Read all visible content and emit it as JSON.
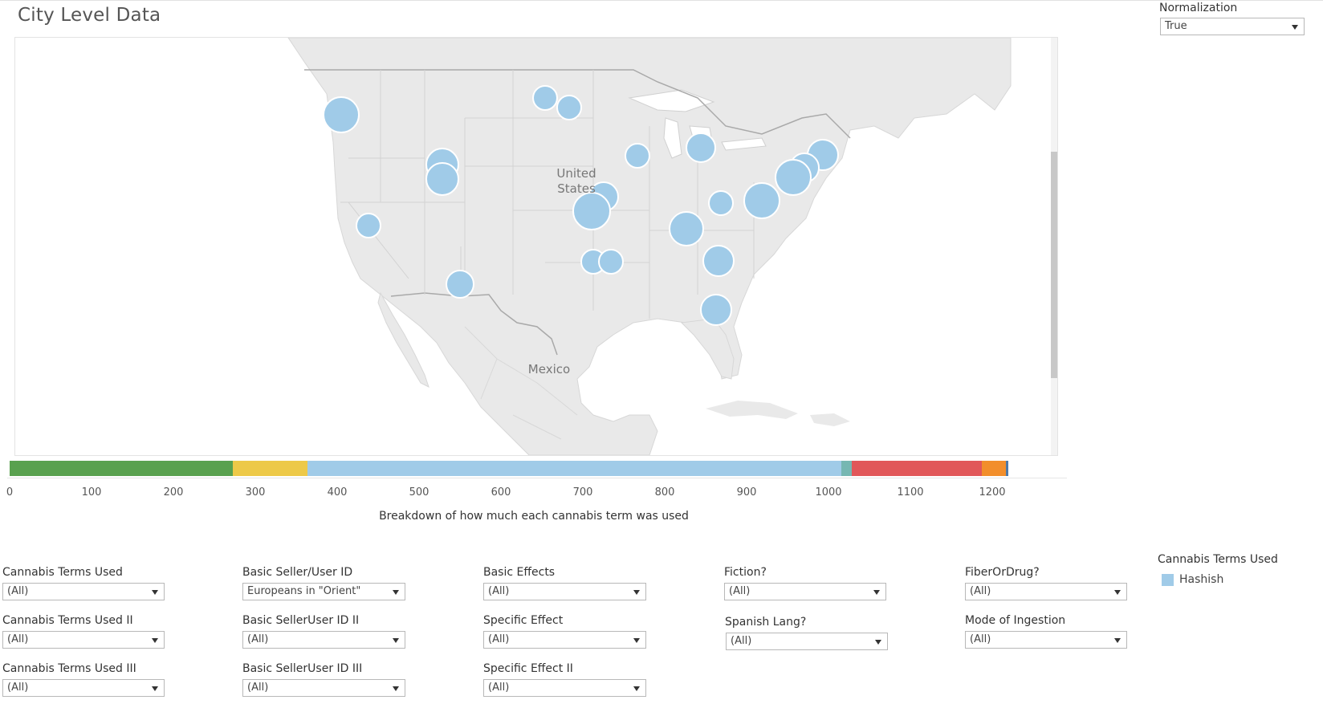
{
  "title": "City Level Data",
  "normalization": {
    "label": "Normalization",
    "value": "True"
  },
  "map": {
    "labels": {
      "us_line1": "United",
      "us_line2": "States",
      "mexico": "Mexico"
    },
    "bubble_color": "#a0cbe8",
    "scroll_up_icon": "chevron-up-icon",
    "scroll_down_icon": "chevron-down-icon"
  },
  "breakdown": {
    "axis_title": "Breakdown of how much each cannabis term was used",
    "ticks": [
      "0",
      "100",
      "200",
      "300",
      "400",
      "500",
      "600",
      "700",
      "800",
      "900",
      "1000",
      "1100",
      "1200"
    ],
    "segments": [
      {
        "start": 0,
        "end": 273,
        "color": "#59a14f"
      },
      {
        "start": 273,
        "end": 364,
        "color": "#edc948"
      },
      {
        "start": 364,
        "end": 1016,
        "color": "#a0cbe8"
      },
      {
        "start": 1016,
        "end": 1028,
        "color": "#76b7b2"
      },
      {
        "start": 1028,
        "end": 1187,
        "color": "#e15759"
      },
      {
        "start": 1187,
        "end": 1217,
        "color": "#f28e2b"
      },
      {
        "start": 1217,
        "end": 1220,
        "color": "#4e79a7"
      }
    ]
  },
  "filters": {
    "cannabis_terms_used": {
      "label": "Cannabis Terms Used",
      "value": "(All)"
    },
    "cannabis_terms_used_ii": {
      "label": "Cannabis Terms Used II",
      "value": "(All)"
    },
    "cannabis_terms_used_iii": {
      "label": "Cannabis Terms Used III",
      "value": "(All)"
    },
    "basic_seller_user_id": {
      "label": "Basic Seller/User ID",
      "value": "Europeans in \"Orient\""
    },
    "basic_selleruser_id_ii": {
      "label": "Basic SellerUser ID II",
      "value": "(All)"
    },
    "basic_selleruser_id_iii": {
      "label": "Basic SellerUser ID III",
      "value": "(All)"
    },
    "basic_effects": {
      "label": "Basic Effects",
      "value": "(All)"
    },
    "specific_effect": {
      "label": "Specific Effect",
      "value": "(All)"
    },
    "specific_effect_ii": {
      "label": "Specific Effect II",
      "value": "(All)"
    },
    "fiction": {
      "label": "Fiction?",
      "value": "(All)"
    },
    "spanish_lang": {
      "label": "Spanish Lang?",
      "value": "(All)"
    },
    "fiber_or_drug": {
      "label": "FiberOrDrug?",
      "value": "(All)"
    },
    "mode_of_ingestion": {
      "label": "Mode of Ingestion",
      "value": "(All)"
    }
  },
  "legend": {
    "title": "Cannabis Terms Used",
    "items": [
      {
        "label": "Hashish",
        "color": "#a0cbe8"
      }
    ]
  }
}
